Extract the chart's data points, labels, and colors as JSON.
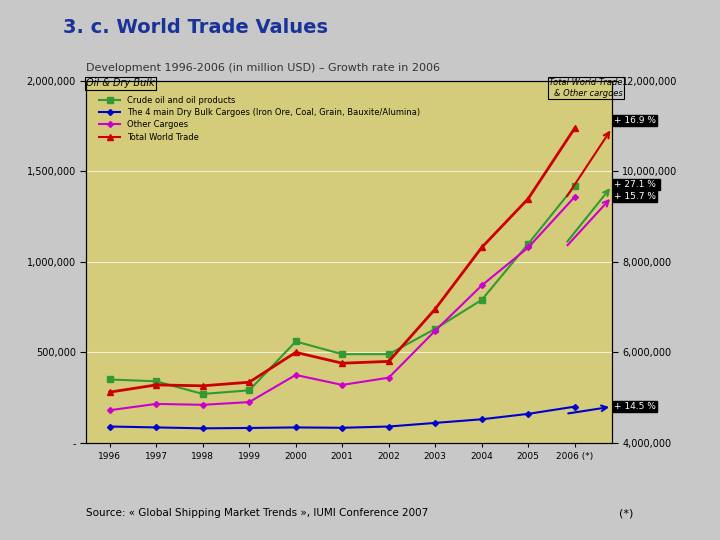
{
  "title": "3. c. World Trade Values",
  "subtitle": "Development 1996-2006 (in million USD) – Growth rate in 2006",
  "left_axis_label": "Oil & Dry Bulk",
  "right_axis_label": "Total World Trade\n& Other cargoes",
  "source": "Source: « Global Shipping Market Trends », IUMI Conference 2007",
  "years": [
    1996,
    1997,
    1998,
    1999,
    2000,
    2001,
    2002,
    2003,
    2004,
    2005,
    2006
  ],
  "year_labels": [
    "1996",
    "1997",
    "1998",
    "1999",
    "2000",
    "2001",
    "2002",
    "2003",
    "2004",
    "2005",
    "2006 (*)"
  ],
  "crude_oil": [
    350000,
    340000,
    270000,
    290000,
    560000,
    490000,
    490000,
    630000,
    790000,
    1100000,
    1420000
  ],
  "dry_bulk": [
    90000,
    85000,
    80000,
    82000,
    85000,
    83000,
    90000,
    110000,
    130000,
    160000,
    200000
  ],
  "other_cargoes": [
    180000,
    215000,
    210000,
    225000,
    375000,
    320000,
    360000,
    620000,
    870000,
    1080000,
    1360000
  ],
  "total_world_trade": [
    280000,
    320000,
    315000,
    335000,
    500000,
    440000,
    450000,
    740000,
    1080000,
    1350000,
    1740000
  ],
  "crude_oil_color": "#339933",
  "dry_bulk_color": "#0000cc",
  "other_cargoes_color": "#cc00cc",
  "total_world_trade_color": "#cc0000",
  "bg_color": "#d4cc7a",
  "plot_bg_color": "#d4cc7a",
  "growth_crude": "+ 27.1 %",
  "growth_dry_bulk": "+ 14.5 %",
  "growth_other": "+ 15.7 %",
  "growth_total": "+ 16.9 %",
  "left_ylim": [
    0,
    2000000
  ],
  "right_ylim": [
    4000000,
    12000000
  ],
  "left_yticks": [
    0,
    500000,
    1000000,
    1500000,
    2000000
  ],
  "left_ytick_labels": [
    "-",
    "500,000",
    "1,000,000",
    "1,500,000",
    "2,000,000"
  ],
  "right_yticks": [
    4000000,
    6000000,
    8000000,
    10000000,
    12000000
  ],
  "right_ytick_labels": [
    "4,000,000",
    "6,000,000",
    "8,000,000",
    "10,000,000",
    "12,000,000"
  ],
  "legend_crude": "Crude oil and oil products",
  "legend_dry": "The 4 main Dry Bulk Cargoes (Iron Ore, Coal, Grain, Bauxite/Alumina)",
  "legend_other": "Other Cargoes",
  "legend_total": "Total World Trade"
}
